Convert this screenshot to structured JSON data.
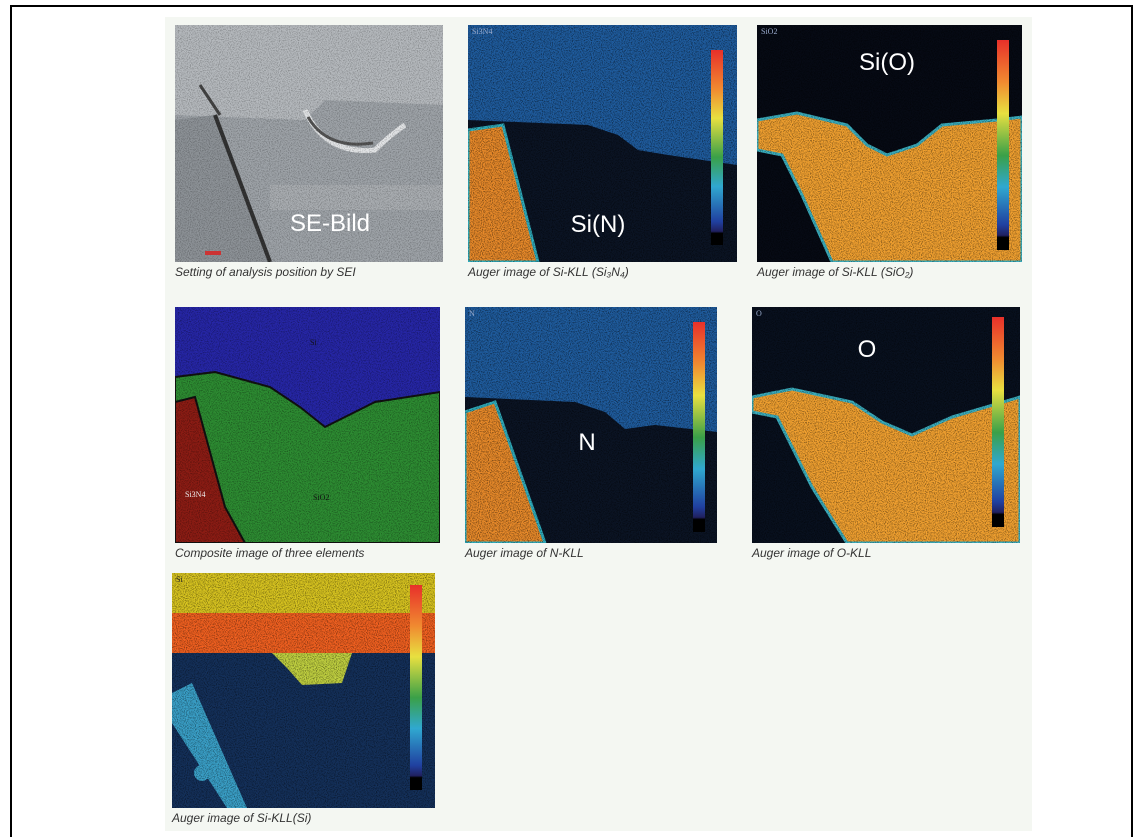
{
  "panels": [
    {
      "overlay_label": "SE-Bild",
      "caption": "Setting of analysis position by SEI"
    },
    {
      "corner_label": "Si3N4",
      "overlay_label": "Si(N)",
      "caption": "Auger image of Si-KLL (Si₃N₄)"
    },
    {
      "corner_label": "SiO2",
      "overlay_label": "Si(O)",
      "caption": "Auger image of Si-KLL (SiO₂)"
    },
    {
      "labels": [
        "Si",
        "Si3N4",
        "SiO2"
      ],
      "caption": "Composite image of three elements"
    },
    {
      "corner_label": "N",
      "overlay_label": "N",
      "caption": "Auger image of N-KLL"
    },
    {
      "corner_label": "O",
      "overlay_label": "O",
      "caption": "Auger image of O-KLL"
    },
    {
      "corner_label": "Si",
      "caption": "Auger image of Si-KLL(Si)"
    }
  ]
}
